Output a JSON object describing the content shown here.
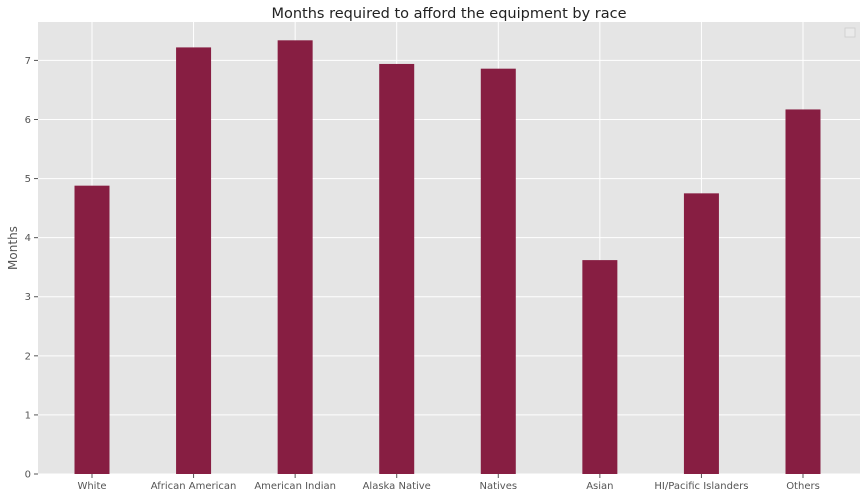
{
  "chart_data": {
    "type": "bar",
    "title": "Months required to afford the equipment by race",
    "xlabel": "",
    "ylabel": "Months",
    "categories": [
      "White",
      "African American",
      "American Indian",
      "Alaska Native",
      "Natives",
      "Asian",
      "HI/Pacific Islanders",
      "Others"
    ],
    "values": [
      4.88,
      7.22,
      7.34,
      6.94,
      6.86,
      3.62,
      4.75,
      6.17
    ],
    "ylim": [
      0,
      7.65
    ],
    "yticks": [
      0,
      1,
      2,
      3,
      4,
      5,
      6,
      7
    ],
    "grid": true,
    "legend": "empty box, top-right",
    "colors": {
      "bar": "#871e42",
      "plot_background": "#e5e5e5",
      "grid": "#ffffff"
    }
  }
}
